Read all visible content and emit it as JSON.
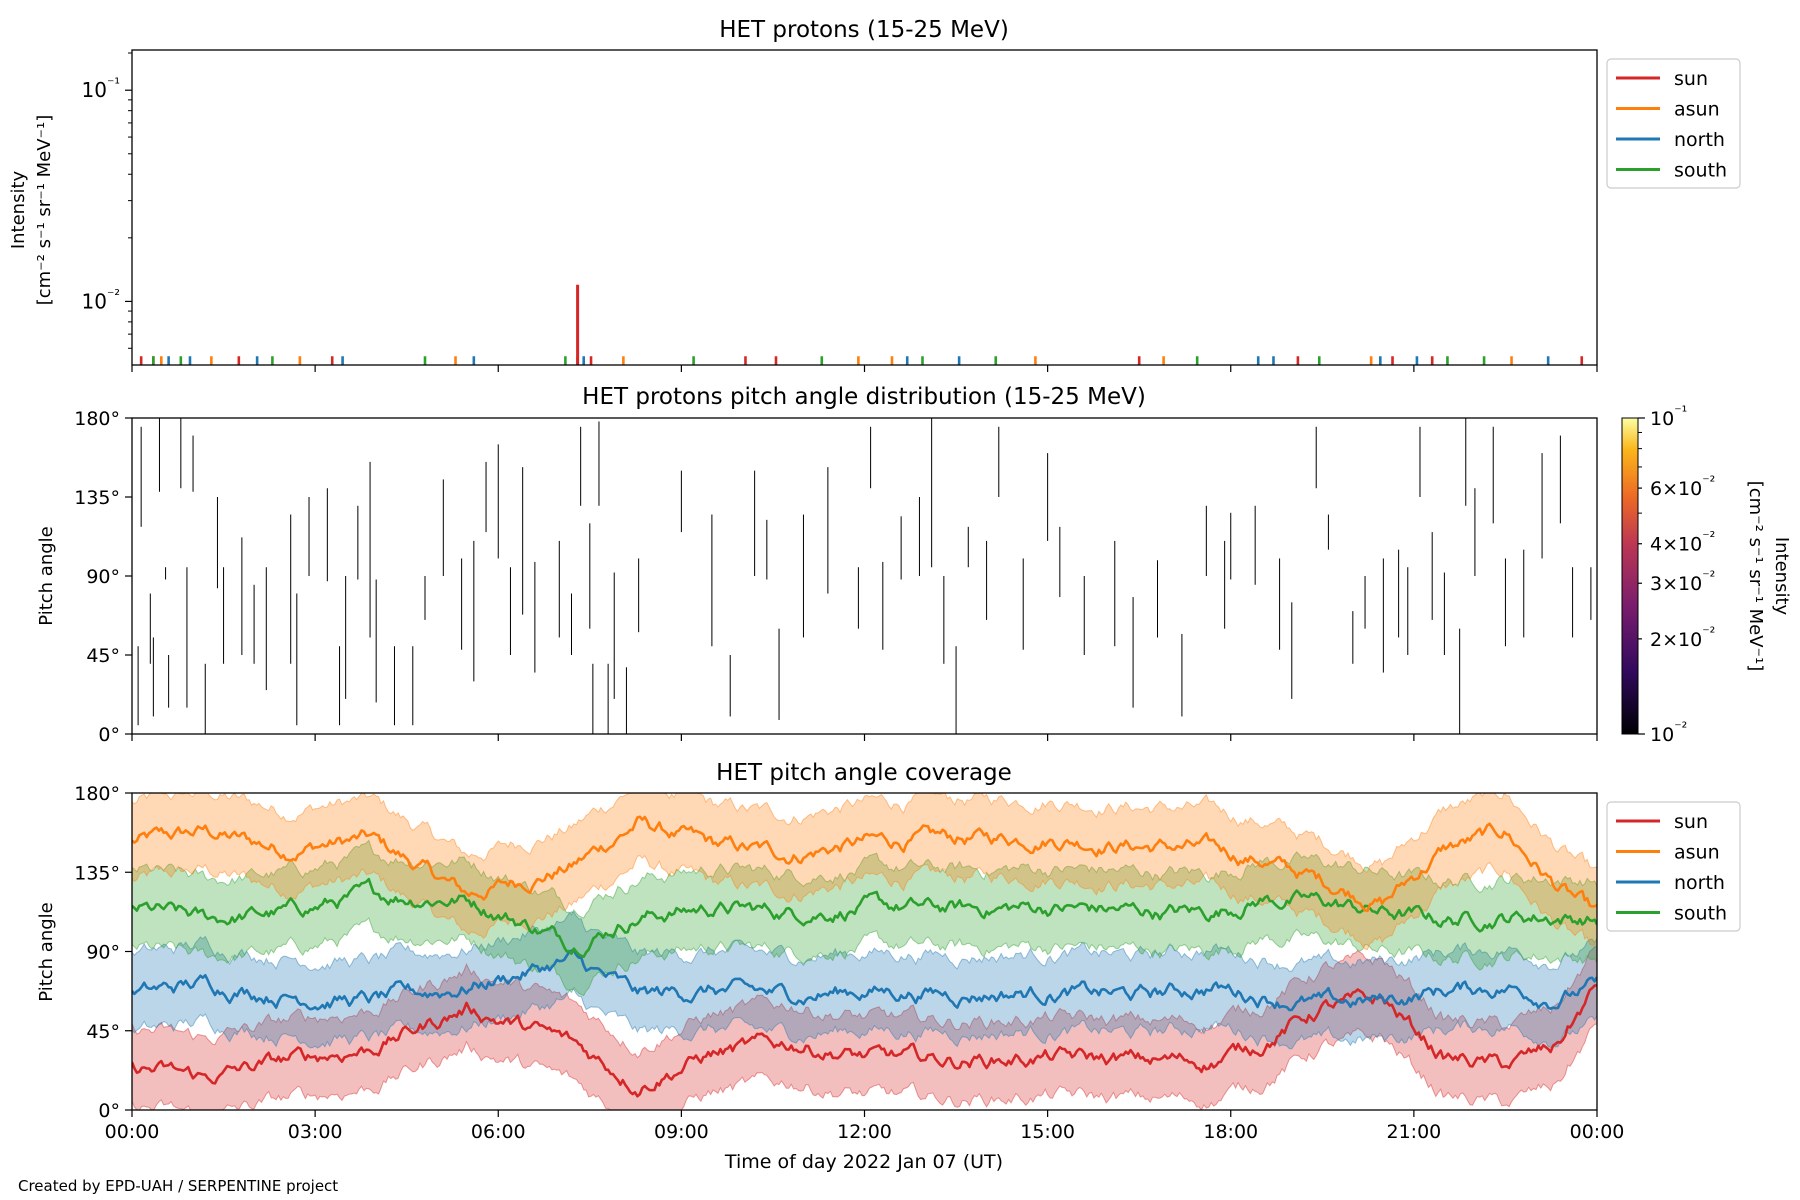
{
  "credit": "Created by EPD-UAH / SERPENTINE project",
  "colors": {
    "sun": "#d62728",
    "asun": "#ff7f0e",
    "north": "#1f77b4",
    "south": "#2ca02c"
  },
  "chart_data": [
    {
      "type": "line",
      "title": "HET protons (15-25 MeV)",
      "ylabel_lines": [
        "Intensity",
        "[cm⁻² s⁻¹ sr⁻¹ MeV⁻¹]"
      ],
      "y_scale": "log",
      "ylim": [
        0.005,
        0.155
      ],
      "ytick_labels": [
        {
          "value": 0.1,
          "label": "10⁻¹"
        },
        {
          "value": 0.01,
          "label": "10⁻²"
        }
      ],
      "legend": "outside top-right",
      "series_names": [
        "sun",
        "asun",
        "north",
        "south"
      ],
      "spikes": {
        "sun": [
          0.15,
          0.35,
          1.75,
          3.28,
          7.3,
          7.52,
          10.05,
          10.55,
          16.5,
          19.1,
          20.65,
          21.3,
          23.75
        ],
        "asun": [
          0.48,
          1.3,
          2.75,
          5.3,
          8.05,
          11.9,
          12.45,
          14.8,
          16.9,
          20.3,
          22.6
        ],
        "north": [
          0.6,
          0.95,
          2.05,
          3.45,
          5.6,
          7.4,
          12.7,
          13.55,
          18.45,
          18.7,
          20.45,
          21.05,
          23.2
        ],
        "south": [
          0.35,
          0.8,
          2.3,
          4.8,
          7.1,
          9.2,
          11.3,
          12.95,
          14.15,
          17.45,
          19.45,
          21.55,
          22.15
        ]
      },
      "peak_event": {
        "series": "sun",
        "x_hours": 7.3,
        "value": 0.012
      },
      "baseline_value": 0.0055,
      "xlim_hours": [
        0,
        24
      ]
    },
    {
      "type": "heatmap",
      "title": "HET protons pitch angle distribution (15-25 MeV)",
      "ylabel": "Pitch angle",
      "ylim": [
        0,
        180
      ],
      "ytick_labels": [
        "0°",
        "45°",
        "90°",
        "135°",
        "180°"
      ],
      "colorbar": {
        "label_lines": [
          "Intensity",
          "[cm⁻² s⁻¹ sr⁻¹ MeV⁻¹]"
        ],
        "scale": "log",
        "range": [
          0.01,
          0.1
        ],
        "tick_labels": [
          {
            "value": 0.1,
            "label": "10⁻¹"
          },
          {
            "value": 0.06,
            "label": "6×10⁻²"
          },
          {
            "value": 0.04,
            "label": "4×10⁻²"
          },
          {
            "value": 0.03,
            "label": "3×10⁻²"
          },
          {
            "value": 0.02,
            "label": "2×10⁻²"
          },
          {
            "value": 0.01,
            "label": "10⁻²"
          }
        ]
      },
      "segments": [
        [
          0.1,
          5,
          50
        ],
        [
          0.15,
          118,
          175
        ],
        [
          0.3,
          40,
          80
        ],
        [
          0.35,
          10,
          55
        ],
        [
          0.45,
          138,
          180
        ],
        [
          0.55,
          88,
          95
        ],
        [
          0.6,
          15,
          45
        ],
        [
          0.8,
          140,
          180
        ],
        [
          0.9,
          15,
          95
        ],
        [
          1.0,
          138,
          170
        ],
        [
          1.2,
          0,
          40
        ],
        [
          1.4,
          83,
          135
        ],
        [
          1.5,
          40,
          95
        ],
        [
          1.8,
          45,
          112
        ],
        [
          2.0,
          40,
          85
        ],
        [
          2.2,
          25,
          95
        ],
        [
          2.6,
          40,
          125
        ],
        [
          2.7,
          5,
          80
        ],
        [
          2.9,
          90,
          135
        ],
        [
          3.2,
          87,
          140
        ],
        [
          3.4,
          5,
          50
        ],
        [
          3.5,
          20,
          90
        ],
        [
          3.7,
          88,
          130
        ],
        [
          3.9,
          55,
          155
        ],
        [
          4.0,
          18,
          88
        ],
        [
          4.3,
          5,
          50
        ],
        [
          4.6,
          5,
          50
        ],
        [
          4.8,
          65,
          90
        ],
        [
          5.1,
          90,
          145
        ],
        [
          5.4,
          48,
          100
        ],
        [
          5.6,
          30,
          110
        ],
        [
          5.8,
          115,
          155
        ],
        [
          6.0,
          100,
          165
        ],
        [
          6.2,
          45,
          95
        ],
        [
          6.4,
          68,
          152
        ],
        [
          6.6,
          35,
          98
        ],
        [
          7.0,
          55,
          110
        ],
        [
          7.2,
          45,
          80
        ],
        [
          7.35,
          130,
          175
        ],
        [
          7.5,
          60,
          120
        ],
        [
          7.55,
          0,
          40
        ],
        [
          7.65,
          130,
          178
        ],
        [
          7.8,
          0,
          40
        ],
        [
          7.9,
          20,
          92
        ],
        [
          8.1,
          0,
          38
        ],
        [
          8.3,
          58,
          100
        ],
        [
          9.0,
          115,
          150
        ],
        [
          9.5,
          50,
          125
        ],
        [
          9.8,
          10,
          45
        ],
        [
          10.2,
          90,
          150
        ],
        [
          10.4,
          88,
          122
        ],
        [
          10.6,
          8,
          60
        ],
        [
          11.0,
          55,
          125
        ],
        [
          11.4,
          80,
          152
        ],
        [
          11.9,
          60,
          95
        ],
        [
          12.1,
          140,
          175
        ],
        [
          12.3,
          48,
          98
        ],
        [
          12.6,
          88,
          124
        ],
        [
          12.9,
          90,
          135
        ],
        [
          13.1,
          95,
          180
        ],
        [
          13.3,
          40,
          90
        ],
        [
          13.5,
          0,
          50
        ],
        [
          13.7,
          95,
          118
        ],
        [
          14.0,
          65,
          110
        ],
        [
          14.2,
          135,
          175
        ],
        [
          14.6,
          48,
          100
        ],
        [
          15.0,
          110,
          160
        ],
        [
          15.2,
          78,
          118
        ],
        [
          15.6,
          45,
          90
        ],
        [
          16.1,
          50,
          110
        ],
        [
          16.4,
          15,
          78
        ],
        [
          16.8,
          55,
          99
        ],
        [
          17.2,
          10,
          57
        ],
        [
          17.6,
          90,
          130
        ],
        [
          17.9,
          60,
          110
        ],
        [
          18.0,
          88,
          126
        ],
        [
          18.4,
          85,
          130
        ],
        [
          18.8,
          48,
          100
        ],
        [
          19.0,
          20,
          75
        ],
        [
          19.4,
          140,
          175
        ],
        [
          19.6,
          105,
          125
        ],
        [
          20.0,
          40,
          70
        ],
        [
          20.2,
          60,
          90
        ],
        [
          20.5,
          35,
          100
        ],
        [
          20.75,
          55,
          105
        ],
        [
          20.9,
          45,
          95
        ],
        [
          21.1,
          135,
          175
        ],
        [
          21.3,
          65,
          115
        ],
        [
          21.5,
          45,
          92
        ],
        [
          21.75,
          0,
          60
        ],
        [
          21.85,
          130,
          180
        ],
        [
          22.0,
          90,
          140
        ],
        [
          22.3,
          120,
          175
        ],
        [
          22.5,
          50,
          100
        ],
        [
          22.8,
          55,
          105
        ],
        [
          23.1,
          100,
          160
        ],
        [
          23.4,
          120,
          170
        ],
        [
          23.6,
          55,
          95
        ],
        [
          23.9,
          65,
          95
        ]
      ]
    },
    {
      "type": "area",
      "title": "HET pitch angle coverage",
      "ylabel": "Pitch angle",
      "xlabel": "Time of day 2022 Jan 07 (UT)",
      "ylim": [
        0,
        180
      ],
      "ytick_labels": [
        "0°",
        "45°",
        "90°",
        "135°",
        "180°"
      ],
      "x_tick_labels": [
        "00:00",
        "03:00",
        "06:00",
        "09:00",
        "12:00",
        "15:00",
        "18:00",
        "21:00",
        "00:00"
      ],
      "xlim_hours": [
        0,
        24
      ],
      "legend": "outside top-right",
      "series": [
        {
          "name": "asun",
          "center_deg": 155,
          "halfwidth_deg": 22,
          "x_hours": [
            0,
            1.2,
            2.5,
            3.9,
            5.5,
            7.2,
            8.3,
            9.5,
            10.8,
            12,
            13.5,
            15,
            16.5,
            17.7,
            18.5,
            19.5,
            20.5,
            21.5,
            22.5,
            23.3,
            24
          ],
          "values": [
            152,
            158,
            148,
            154,
            122,
            138,
            163,
            150,
            145,
            152,
            154,
            155,
            150,
            148,
            142,
            130,
            118,
            148,
            158,
            128,
            110
          ]
        },
        {
          "name": "south",
          "center_deg": 110,
          "halfwidth_deg": 22,
          "x_hours": [
            0,
            1.2,
            2.5,
            3.9,
            5.5,
            7.2,
            8.3,
            9.5,
            10.8,
            12,
            13.5,
            15,
            16.5,
            17.7,
            18.5,
            19.5,
            20.5,
            21.5,
            22.5,
            23.3,
            24
          ],
          "values": [
            115,
            108,
            112,
            122,
            120,
            95,
            110,
            115,
            112,
            115,
            114,
            115,
            113,
            112,
            120,
            118,
            112,
            108,
            110,
            110,
            108
          ]
        },
        {
          "name": "north",
          "center_deg": 68,
          "halfwidth_deg": 22,
          "x_hours": [
            0,
            1.2,
            2.5,
            3.9,
            5.5,
            7.2,
            8.3,
            9.5,
            10.8,
            12,
            13.5,
            15,
            16.5,
            17.7,
            18.5,
            19.5,
            20.5,
            21.5,
            22.5,
            23.3,
            24
          ],
          "values": [
            65,
            72,
            65,
            62,
            70,
            85,
            65,
            68,
            65,
            68,
            66,
            67,
            65,
            70,
            65,
            60,
            62,
            68,
            70,
            64,
            70
          ]
        },
        {
          "name": "sun",
          "center_deg": 25,
          "halfwidth_deg": 22,
          "x_hours": [
            0,
            1.2,
            2.5,
            3.9,
            5.5,
            7.2,
            8.3,
            9.5,
            10.8,
            12,
            13.5,
            15,
            16.5,
            17.7,
            18.5,
            19.5,
            20.5,
            21.5,
            22.5,
            23.3,
            24
          ],
          "values": [
            25,
            18,
            28,
            35,
            58,
            38,
            15,
            32,
            38,
            30,
            28,
            30,
            28,
            28,
            38,
            58,
            62,
            30,
            25,
            35,
            70
          ]
        }
      ]
    }
  ],
  "legend_top": [
    "sun",
    "asun",
    "north",
    "south"
  ],
  "legend_bottom": [
    "sun",
    "asun",
    "north",
    "south"
  ]
}
